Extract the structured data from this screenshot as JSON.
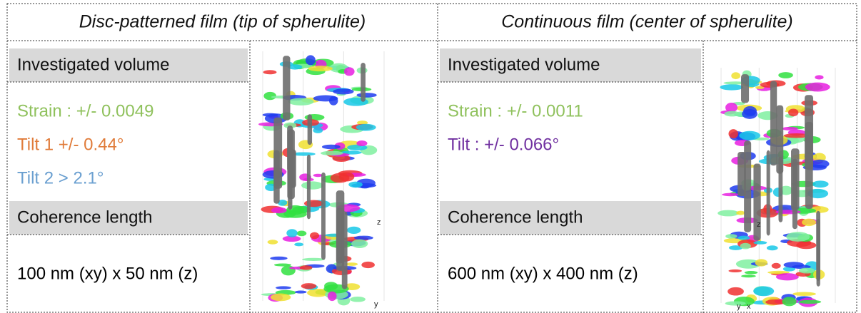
{
  "panels": [
    {
      "title": "Disc-patterned film (tip of spherulite)",
      "sections": [
        {
          "heading": "Investigated volume",
          "lines": [
            {
              "text": "Strain : +/- 0.0049",
              "color": "#8fc15c"
            },
            {
              "text": "Tilt 1 +/- 0.44°",
              "color": "#e07b39"
            },
            {
              "text": "Tilt 2 > 2.1°",
              "color": "#6a9fd0"
            }
          ]
        },
        {
          "heading": "Coherence length",
          "lines": [
            {
              "text": "100 nm (xy) x 50 nm (z)",
              "color": "#000000"
            }
          ]
        }
      ],
      "axis_labels": [
        "z",
        "y"
      ]
    },
    {
      "title": "Continuous film (center of spherulite)",
      "sections": [
        {
          "heading": "Investigated volume",
          "lines": [
            {
              "text": "Strain : +/- 0.0011",
              "color": "#8fc15c"
            },
            {
              "text": "Tilt : +/- 0.066°",
              "color": "#7030a0"
            }
          ]
        },
        {
          "heading": "Coherence length",
          "lines": [
            {
              "text": "600 nm (xy) x 400 nm (z)",
              "color": "#000000"
            }
          ]
        }
      ],
      "axis_labels": [
        "z",
        "x",
        "y"
      ]
    }
  ]
}
